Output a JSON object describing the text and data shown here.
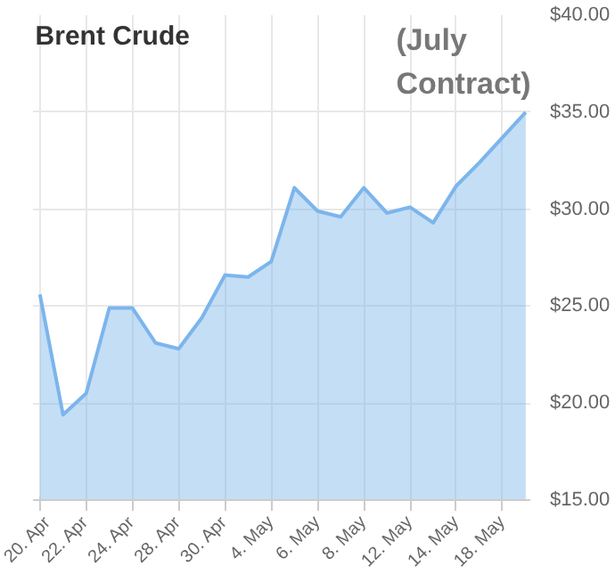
{
  "chart_data": {
    "type": "area",
    "title": "Brent Crude",
    "annotations": [
      "(July Contract)"
    ],
    "categories": [
      "20. Apr",
      null,
      "22. Apr",
      null,
      "24. Apr",
      null,
      "28. Apr",
      null,
      "30. Apr",
      null,
      "4. May",
      null,
      "6. May",
      null,
      "8. May",
      null,
      "12. May",
      null,
      "14. May",
      null,
      "18. May",
      null
    ],
    "series": [
      {
        "color": "#7cb5ec",
        "values": [
          25.6,
          19.4,
          20.5,
          24.9,
          24.9,
          23.1,
          22.8,
          24.4,
          26.6,
          26.5,
          27.3,
          31.1,
          29.9,
          29.6,
          31.1,
          29.8,
          30.1,
          29.3,
          31.2,
          32.4,
          33.7,
          35.0
        ]
      }
    ],
    "ylim": [
      15,
      40
    ],
    "yticks": [
      {
        "value": 15,
        "label": "$15.00"
      },
      {
        "value": 20,
        "label": "$20.00"
      },
      {
        "value": 25,
        "label": "$25.00"
      },
      {
        "value": 30,
        "label": "$30.00"
      },
      {
        "value": 35,
        "label": "$35.00"
      },
      {
        "value": 40,
        "label": "$40.00"
      }
    ],
    "grid": true
  }
}
